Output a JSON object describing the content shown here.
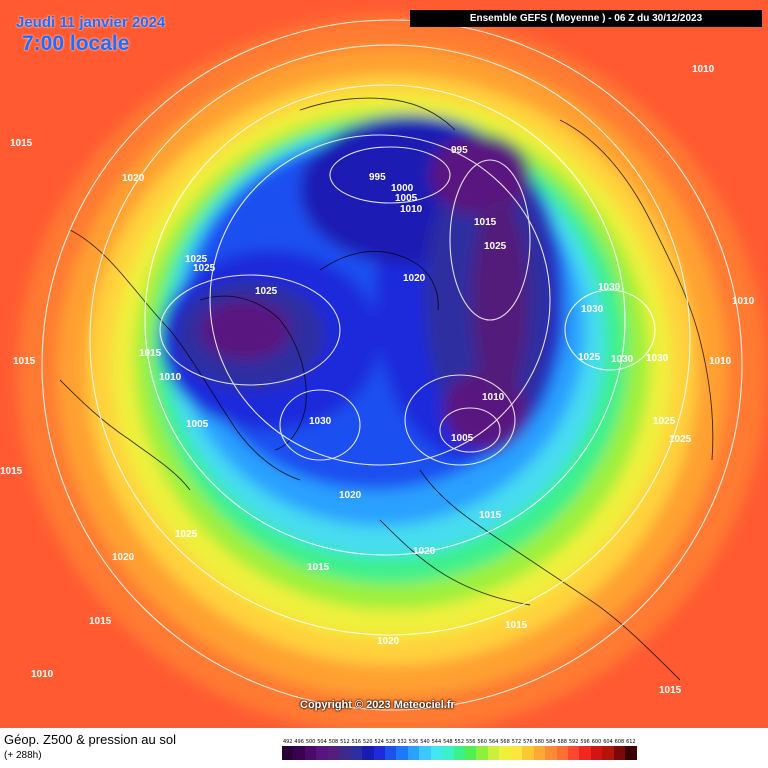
{
  "header": {
    "date": "Jeudi 11 janvier 2024",
    "time": "7:00 locale",
    "model_run": "Ensemble GEFS  ( Moyenne )  -  06 Z du 30/12/2023"
  },
  "copyright": "Copyright © 2023 Meteociel.fr",
  "footer": {
    "title": "Géop. Z500 & pression au sol",
    "forecast_step": "(+ 288h)"
  },
  "legend": [
    {
      "label": "492",
      "color": "#2a0038"
    },
    {
      "label": "496",
      "color": "#3a0050"
    },
    {
      "label": "500",
      "color": "#4a0a6a"
    },
    {
      "label": "504",
      "color": "#5a1480"
    },
    {
      "label": "508",
      "color": "#521f7a"
    },
    {
      "label": "512",
      "color": "#3c2a8c"
    },
    {
      "label": "516",
      "color": "#2d2fa0"
    },
    {
      "label": "520",
      "color": "#1a1ab4"
    },
    {
      "label": "524",
      "color": "#1e2adc"
    },
    {
      "label": "528",
      "color": "#1e50f0"
    },
    {
      "label": "532",
      "color": "#1e78ff"
    },
    {
      "label": "536",
      "color": "#2aa0ff"
    },
    {
      "label": "540",
      "color": "#3cc8ff"
    },
    {
      "label": "544",
      "color": "#46e6f0"
    },
    {
      "label": "548",
      "color": "#3cf0c8"
    },
    {
      "label": "552",
      "color": "#3cf08c"
    },
    {
      "label": "556",
      "color": "#50f050"
    },
    {
      "label": "560",
      "color": "#8cf03c"
    },
    {
      "label": "564",
      "color": "#c8f03c"
    },
    {
      "label": "568",
      "color": "#f0f03c"
    },
    {
      "label": "572",
      "color": "#ffe63c"
    },
    {
      "label": "576",
      "color": "#ffc832"
    },
    {
      "label": "580",
      "color": "#ffaa32"
    },
    {
      "label": "584",
      "color": "#ff8c32"
    },
    {
      "label": "588",
      "color": "#ff6e32"
    },
    {
      "label": "592",
      "color": "#ff4632"
    },
    {
      "label": "596",
      "color": "#f0281e"
    },
    {
      "label": "600",
      "color": "#d21414"
    },
    {
      "label": "604",
      "color": "#b4140a"
    },
    {
      "label": "608",
      "color": "#7a0a0a"
    },
    {
      "label": "612",
      "color": "#3c0000"
    }
  ],
  "pressure_labels": [
    {
      "value": "1010"
    },
    {
      "value": "1015"
    },
    {
      "value": "1020"
    },
    {
      "value": "995"
    },
    {
      "value": "995"
    },
    {
      "value": "1000"
    },
    {
      "value": "1005"
    },
    {
      "value": "1010"
    },
    {
      "value": "1015"
    },
    {
      "value": "1025"
    },
    {
      "value": "1025"
    },
    {
      "value": "1025"
    },
    {
      "value": "1025"
    },
    {
      "value": "1020"
    },
    {
      "value": "1030"
    },
    {
      "value": "1030"
    },
    {
      "value": "1010"
    },
    {
      "value": "1015"
    },
    {
      "value": "1015"
    },
    {
      "value": "1010"
    },
    {
      "value": "1025"
    },
    {
      "value": "1030"
    },
    {
      "value": "1030"
    },
    {
      "value": "1010"
    },
    {
      "value": "1005"
    },
    {
      "value": "1010"
    },
    {
      "value": "1030"
    },
    {
      "value": "1005"
    },
    {
      "value": "1025"
    },
    {
      "value": "1025"
    },
    {
      "value": "1015"
    },
    {
      "value": "1020"
    },
    {
      "value": "1015"
    },
    {
      "value": "1025"
    },
    {
      "value": "1020"
    },
    {
      "value": "1020"
    },
    {
      "value": "1015"
    },
    {
      "value": "1015"
    },
    {
      "value": "1015"
    },
    {
      "value": "1020"
    },
    {
      "value": "1010"
    },
    {
      "value": "1015"
    }
  ]
}
